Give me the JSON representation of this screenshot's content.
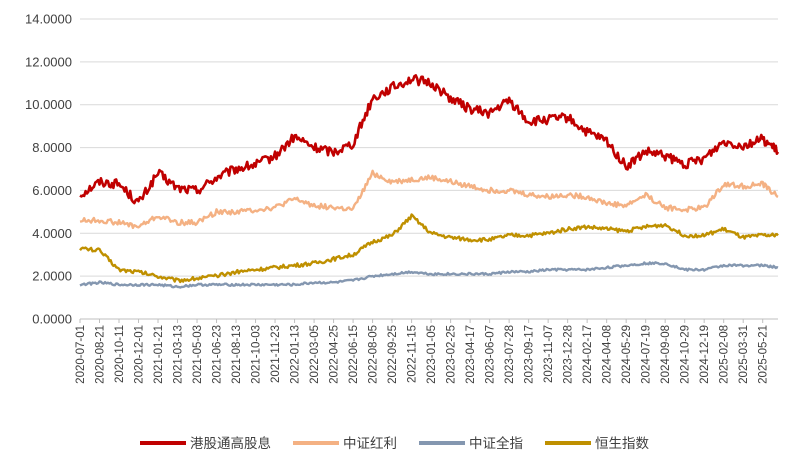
{
  "chart_data": {
    "type": "line",
    "title": "",
    "xlabel": "",
    "ylabel": "",
    "ylim": [
      0,
      14
    ],
    "yticks": [
      "0.0000",
      "2.0000",
      "4.0000",
      "6.0000",
      "8.0000",
      "10.0000",
      "12.0000",
      "14.0000"
    ],
    "x_tick_labels": [
      "2020-07-01",
      "2020-08-21",
      "2020-10-11",
      "2020-12-01",
      "2021-01-21",
      "2021-03-13",
      "2021-05-03",
      "2021-06-23",
      "2021-08-13",
      "2021-10-03",
      "2021-11-23",
      "2022-01-13",
      "2022-03-05",
      "2022-04-25",
      "2022-06-15",
      "2022-08-05",
      "2022-09-25",
      "2022-11-15",
      "2023-01-05",
      "2023-02-25",
      "2023-04-17",
      "2023-06-07",
      "2023-07-28",
      "2023-09-17",
      "2023-11-07",
      "2023-12-28",
      "2024-02-17",
      "2024-04-08",
      "2024-05-29",
      "2024-07-19",
      "2024-09-08",
      "2024-10-29",
      "2024-12-19",
      "2025-02-08",
      "2025-03-31",
      "2025-05-21"
    ],
    "grid": "horizontal",
    "legend_position": "bottom",
    "x": [
      "2020-07-01",
      "2020-08-21",
      "2020-10-11",
      "2020-12-01",
      "2021-01-21",
      "2021-03-13",
      "2021-05-03",
      "2021-06-23",
      "2021-08-13",
      "2021-10-03",
      "2021-11-23",
      "2022-01-13",
      "2022-03-05",
      "2022-04-25",
      "2022-06-15",
      "2022-08-05",
      "2022-09-25",
      "2022-11-15",
      "2023-01-05",
      "2023-02-25",
      "2023-04-17",
      "2023-06-07",
      "2023-07-28",
      "2023-09-17",
      "2023-11-07",
      "2023-12-28",
      "2024-02-17",
      "2024-04-08",
      "2024-05-29",
      "2024-07-19",
      "2024-09-08",
      "2024-10-29",
      "2024-12-19",
      "2025-02-08",
      "2025-03-31",
      "2025-05-21",
      "2025-06-30"
    ],
    "series": [
      {
        "name": "港股通高股息",
        "color": "#c00000",
        "values": [
          5.8,
          6.4,
          6.3,
          5.4,
          6.8,
          6.1,
          6.0,
          6.6,
          7.0,
          7.2,
          7.6,
          8.5,
          8.0,
          7.8,
          8.2,
          10.3,
          10.8,
          11.2,
          11.0,
          10.3,
          9.8,
          9.6,
          10.2,
          9.2,
          9.3,
          9.4,
          8.7,
          8.3,
          7.1,
          7.8,
          7.6,
          7.2,
          7.5,
          8.3,
          8.1,
          8.4,
          7.8
        ]
      },
      {
        "name": "中证红利",
        "color": "#f4b183",
        "values": [
          4.6,
          4.6,
          4.5,
          4.3,
          4.8,
          4.5,
          4.5,
          5.0,
          5.0,
          5.1,
          5.2,
          5.6,
          5.3,
          5.2,
          5.1,
          6.8,
          6.4,
          6.5,
          6.6,
          6.4,
          6.2,
          6.0,
          6.0,
          5.8,
          5.7,
          5.8,
          5.7,
          5.4,
          5.3,
          5.8,
          5.2,
          5.1,
          5.2,
          6.3,
          6.2,
          6.3,
          5.7
        ]
      },
      {
        "name": "中证全指",
        "color": "#8497b0",
        "values": [
          1.6,
          1.7,
          1.6,
          1.6,
          1.6,
          1.5,
          1.6,
          1.6,
          1.6,
          1.6,
          1.6,
          1.6,
          1.7,
          1.7,
          1.8,
          2.0,
          2.1,
          2.2,
          2.1,
          2.1,
          2.1,
          2.1,
          2.2,
          2.2,
          2.3,
          2.3,
          2.3,
          2.4,
          2.5,
          2.6,
          2.6,
          2.3,
          2.3,
          2.5,
          2.5,
          2.5,
          2.4
        ]
      },
      {
        "name": "恒生指数",
        "color": "#bf9000",
        "values": [
          3.3,
          3.2,
          2.3,
          2.2,
          2.0,
          1.8,
          1.9,
          2.0,
          2.2,
          2.3,
          2.4,
          2.5,
          2.6,
          2.8,
          3.0,
          3.6,
          3.9,
          4.8,
          4.0,
          3.8,
          3.7,
          3.7,
          3.9,
          3.9,
          4.0,
          4.2,
          4.3,
          4.2,
          4.1,
          4.3,
          4.4,
          3.9,
          3.9,
          4.2,
          3.8,
          3.9,
          3.9
        ]
      }
    ]
  }
}
